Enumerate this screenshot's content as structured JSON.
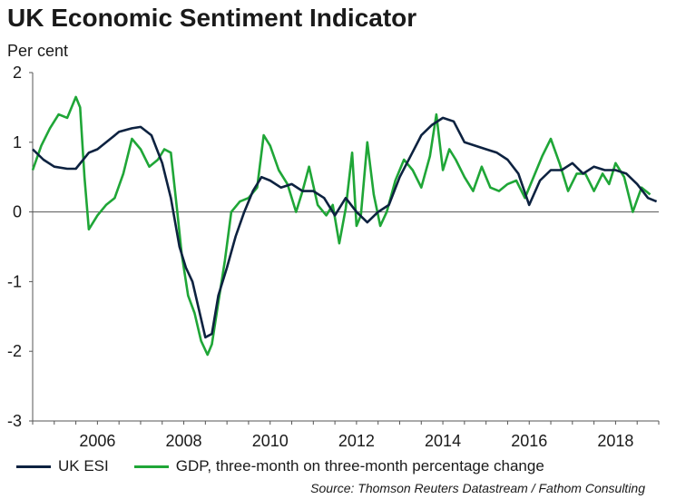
{
  "chart_data": {
    "type": "line",
    "title": "UK Economic Sentiment Indicator",
    "ylabel": "Per cent",
    "xlabel": "",
    "xlim": [
      2005.0,
      2019.5
    ],
    "ylim": [
      -3,
      2
    ],
    "yticks": [
      2,
      1,
      0,
      -1,
      -2,
      -3
    ],
    "xticks": [
      2006,
      2008,
      2010,
      2012,
      2014,
      2016,
      2018
    ],
    "grid": false,
    "zero_line": true,
    "legend_position": "bottom",
    "source": "Source: Thomson Reuters Datastream / Fathom Consulting",
    "series": [
      {
        "name": "UK ESI",
        "color": "#0d2240",
        "x": [
          2005.0,
          2005.25,
          2005.5,
          2005.8,
          2006.0,
          2006.3,
          2006.5,
          2006.8,
          2007.0,
          2007.3,
          2007.5,
          2007.75,
          2008.0,
          2008.2,
          2008.4,
          2008.55,
          2008.7,
          2008.85,
          2009.0,
          2009.15,
          2009.3,
          2009.5,
          2009.7,
          2009.9,
          2010.1,
          2010.3,
          2010.5,
          2010.75,
          2011.0,
          2011.25,
          2011.5,
          2011.75,
          2012.0,
          2012.25,
          2012.5,
          2012.75,
          2013.0,
          2013.25,
          2013.5,
          2013.75,
          2014.0,
          2014.25,
          2014.5,
          2014.75,
          2015.0,
          2015.25,
          2015.5,
          2015.75,
          2016.0,
          2016.25,
          2016.5,
          2016.75,
          2017.0,
          2017.25,
          2017.5,
          2017.75,
          2018.0,
          2018.25,
          2018.5,
          2018.75,
          2019.0,
          2019.25,
          2019.45
        ],
        "values": [
          0.9,
          0.75,
          0.65,
          0.62,
          0.62,
          0.85,
          0.9,
          1.05,
          1.15,
          1.2,
          1.22,
          1.1,
          0.7,
          0.2,
          -0.5,
          -0.8,
          -1.0,
          -1.4,
          -1.8,
          -1.75,
          -1.2,
          -0.8,
          -0.35,
          0.0,
          0.3,
          0.5,
          0.45,
          0.35,
          0.4,
          0.3,
          0.3,
          0.2,
          -0.05,
          0.2,
          0.0,
          -0.15,
          0.0,
          0.1,
          0.5,
          0.8,
          1.1,
          1.25,
          1.35,
          1.3,
          1.0,
          0.95,
          0.9,
          0.85,
          0.75,
          0.55,
          0.1,
          0.45,
          0.6,
          0.6,
          0.7,
          0.55,
          0.65,
          0.6,
          0.6,
          0.55,
          0.4,
          0.2,
          0.15
        ]
      },
      {
        "name": "GDP, three-month on three-month percentage change",
        "color": "#1fa637",
        "x": [
          2005.0,
          2005.2,
          2005.4,
          2005.6,
          2005.8,
          2006.0,
          2006.1,
          2006.2,
          2006.3,
          2006.5,
          2006.7,
          2006.9,
          2007.1,
          2007.3,
          2007.5,
          2007.7,
          2007.9,
          2008.05,
          2008.2,
          2008.35,
          2008.45,
          2008.6,
          2008.75,
          2008.9,
          2009.05,
          2009.15,
          2009.3,
          2009.45,
          2009.6,
          2009.8,
          2010.0,
          2010.2,
          2010.35,
          2010.5,
          2010.7,
          2010.9,
          2011.1,
          2011.25,
          2011.4,
          2011.6,
          2011.8,
          2011.95,
          2012.1,
          2012.25,
          2012.4,
          2012.5,
          2012.6,
          2012.75,
          2012.9,
          2013.05,
          2013.2,
          2013.4,
          2013.6,
          2013.8,
          2014.0,
          2014.2,
          2014.35,
          2014.5,
          2014.65,
          2014.8,
          2015.0,
          2015.2,
          2015.4,
          2015.6,
          2015.8,
          2016.0,
          2016.2,
          2016.4,
          2016.6,
          2016.8,
          2017.0,
          2017.2,
          2017.4,
          2017.6,
          2017.8,
          2018.0,
          2018.2,
          2018.35,
          2018.5,
          2018.7,
          2018.9,
          2019.1,
          2019.3
        ],
        "values": [
          0.6,
          0.95,
          1.2,
          1.4,
          1.35,
          1.65,
          1.5,
          0.5,
          -0.25,
          -0.05,
          0.1,
          0.2,
          0.55,
          1.05,
          0.9,
          0.65,
          0.75,
          0.9,
          0.85,
          0.0,
          -0.6,
          -1.2,
          -1.45,
          -1.85,
          -2.05,
          -1.9,
          -1.3,
          -0.7,
          0.0,
          0.15,
          0.2,
          0.35,
          1.1,
          0.95,
          0.6,
          0.4,
          0.0,
          0.3,
          0.65,
          0.1,
          -0.05,
          0.1,
          -0.45,
          0.05,
          0.85,
          -0.2,
          -0.05,
          1.0,
          0.25,
          -0.2,
          0.0,
          0.45,
          0.75,
          0.6,
          0.35,
          0.8,
          1.4,
          0.6,
          0.9,
          0.75,
          0.5,
          0.3,
          0.65,
          0.35,
          0.3,
          0.4,
          0.45,
          0.2,
          0.5,
          0.8,
          1.05,
          0.7,
          0.3,
          0.55,
          0.55,
          0.3,
          0.55,
          0.4,
          0.7,
          0.5,
          0.0,
          0.35,
          0.25
        ]
      }
    ]
  }
}
